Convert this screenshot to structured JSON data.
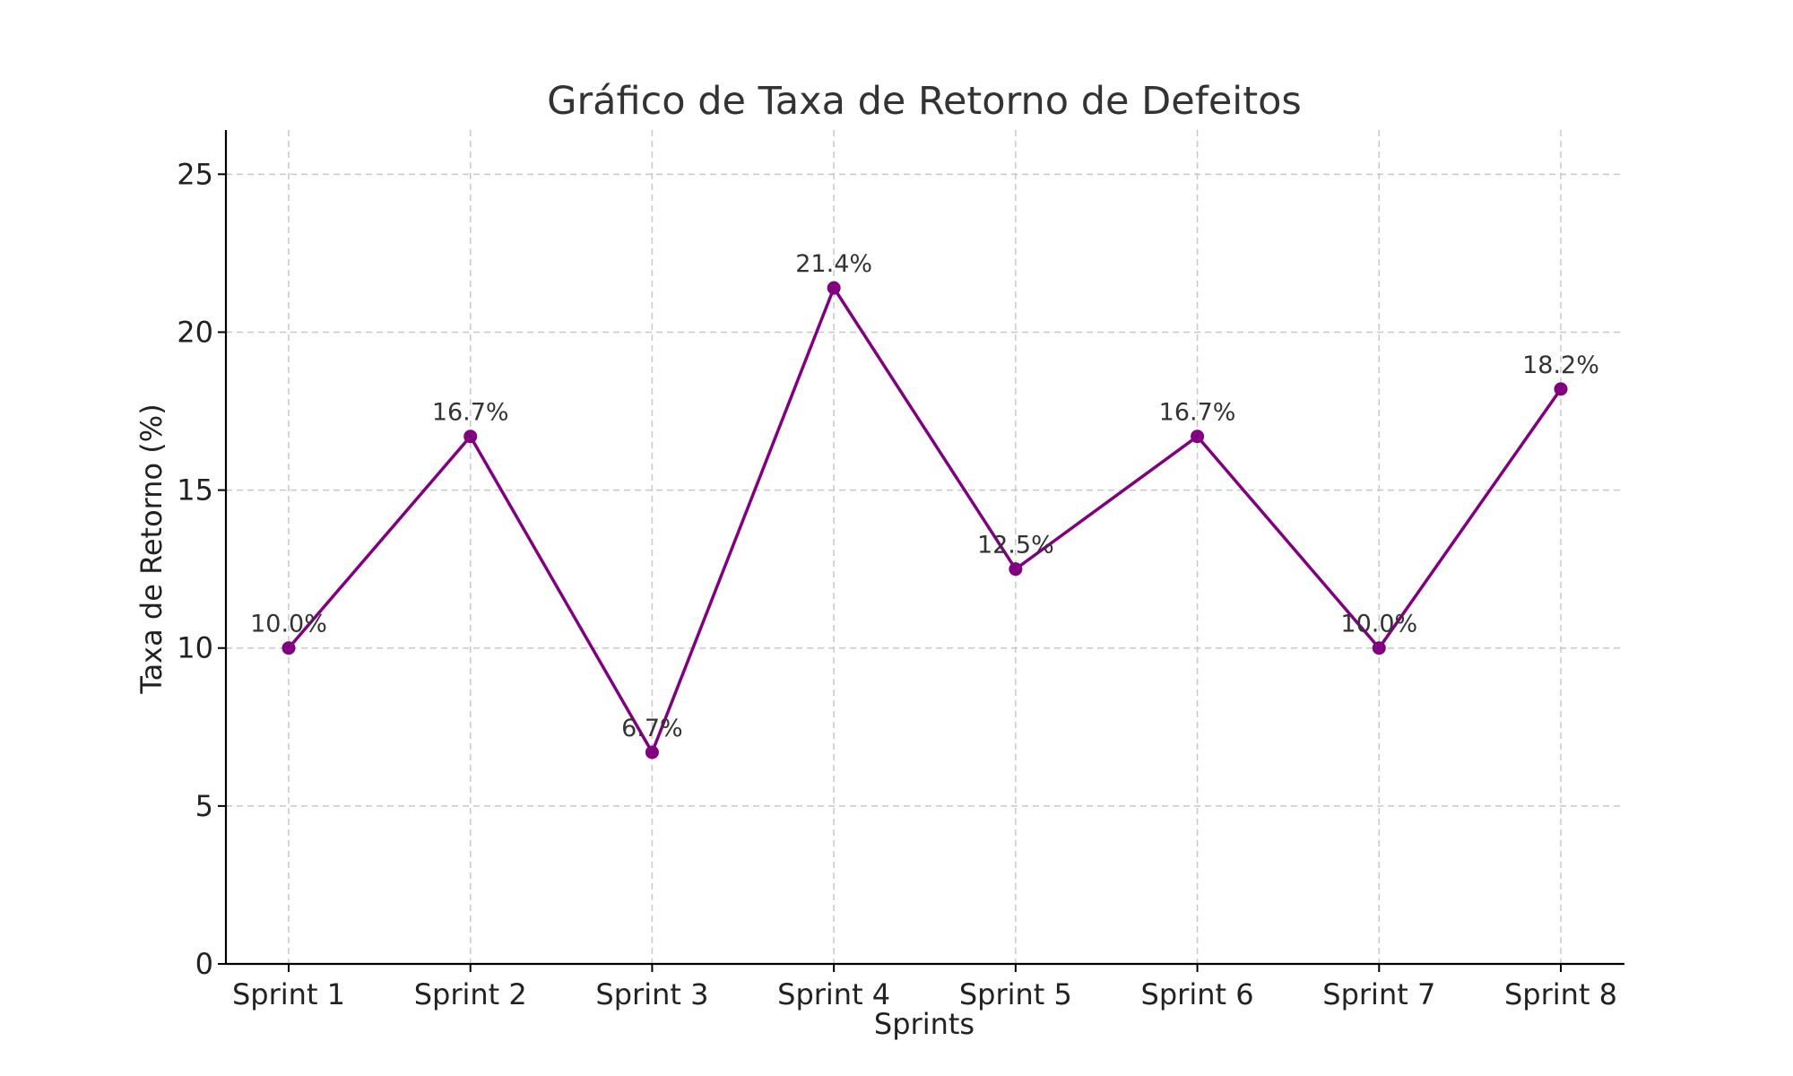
{
  "chart_data": {
    "type": "line",
    "title": "Gráfico de Taxa de Retorno de Defeitos",
    "xlabel": "Sprints",
    "ylabel": "Taxa de Retorno (%)",
    "categories": [
      "Sprint 1",
      "Sprint 2",
      "Sprint 3",
      "Sprint 4",
      "Sprint 5",
      "Sprint 6",
      "Sprint 7",
      "Sprint 8"
    ],
    "series": [
      {
        "values": [
          10.0,
          16.7,
          6.7,
          21.4,
          12.5,
          16.7,
          10.0,
          18.2
        ],
        "data_labels": [
          "10.0%",
          "16.7%",
          "6.7%",
          "21.4%",
          "12.5%",
          "16.7%",
          "10.0%",
          "18.2%"
        ],
        "color": "#800080",
        "marker": "circle"
      }
    ],
    "ylim": [
      0,
      26.4
    ],
    "yticks": [
      0,
      5,
      10,
      15,
      20,
      25
    ],
    "grid": true,
    "legend": false
  }
}
